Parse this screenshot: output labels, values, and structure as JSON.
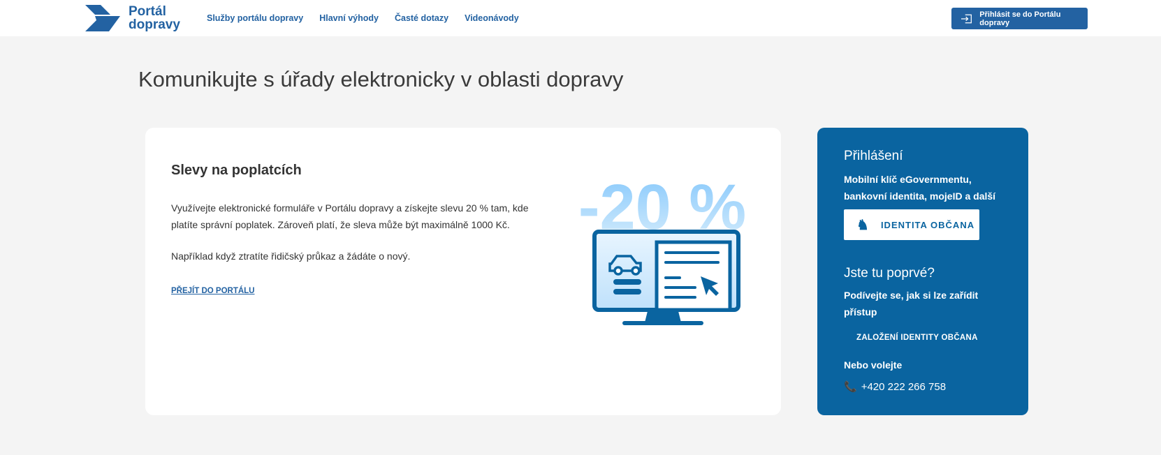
{
  "header": {
    "logo_line1": "Portál",
    "logo_line2": "dopravy",
    "nav": [
      {
        "label": "Služby portálu dopravy"
      },
      {
        "label": "Hlavní výhody"
      },
      {
        "label": "Časté dotazy"
      },
      {
        "label": "Videonávody"
      }
    ],
    "login_label": "Přihlásit se do Portálu dopravy"
  },
  "page_title": "Komunikujte s úřady elektronicky v oblasti dopravy",
  "card": {
    "title": "Slevy na poplatcích",
    "p1": "Využívejte elektronické formuláře v Portálu dopravy a získejte slevu 20 % tam, kde platíte správní poplatek. Zároveň platí, že sleva může být maximálně 1000 Kč.",
    "p2": "Například když ztratíte řidičský průkaz a žádáte o nový.",
    "link": "PŘEJÍT DO PORTÁLU",
    "illustration_text": "-20 %"
  },
  "sidebar": {
    "title": "Přihlášení",
    "subtitle": "Mobilní klíč eGovernmentu, bankovní identita, mojeID a další",
    "identity_button": "IDENTITA OBČANA",
    "first_time_title": "Jste tu poprvé?",
    "first_time_text": "Podívejte se, jak si lze zařídit přístup",
    "setup_link": "ZALOŽENÍ IDENTITY OBČANA",
    "call_label": "Nebo volejte",
    "phone": "+420 222 266 758"
  },
  "colors": {
    "brand": "#2362a2",
    "sidebar": "#0a64a0",
    "background": "#f4f4f4"
  }
}
